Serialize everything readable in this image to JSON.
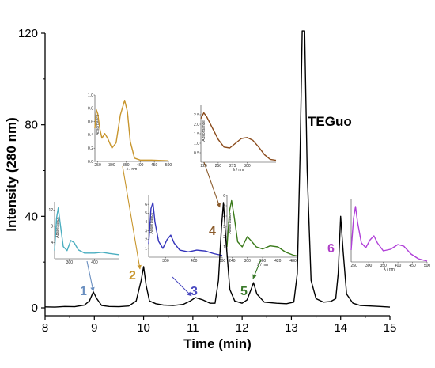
{
  "chart_data": {
    "type": "line",
    "title": "",
    "xlabel": "Time (min)",
    "ylabel": "Intensity (280 nm)",
    "xlim": [
      8,
      15
    ],
    "ylim": [
      -3,
      120
    ],
    "x_ticks": [
      8,
      9,
      10,
      11,
      12,
      13,
      14,
      15
    ],
    "y_ticks": [
      0,
      40,
      80,
      120
    ],
    "grid": false,
    "series_color": "#000000",
    "peak_label": "TEGuo",
    "series": [
      {
        "name": "",
        "points": [
          [
            8.0,
            0.4
          ],
          [
            8.2,
            0.3
          ],
          [
            8.4,
            0.6
          ],
          [
            8.6,
            0.5
          ],
          [
            8.8,
            1.2
          ],
          [
            8.9,
            3.0
          ],
          [
            8.98,
            7.0
          ],
          [
            9.05,
            4.0
          ],
          [
            9.15,
            1.0
          ],
          [
            9.3,
            0.6
          ],
          [
            9.5,
            0.5
          ],
          [
            9.7,
            0.8
          ],
          [
            9.85,
            3.0
          ],
          [
            9.95,
            12.0
          ],
          [
            10.0,
            18.0
          ],
          [
            10.05,
            10.0
          ],
          [
            10.12,
            3.0
          ],
          [
            10.25,
            1.8
          ],
          [
            10.4,
            1.2
          ],
          [
            10.6,
            1.0
          ],
          [
            10.8,
            1.5
          ],
          [
            10.95,
            3.0
          ],
          [
            11.05,
            4.5
          ],
          [
            11.2,
            3.5
          ],
          [
            11.35,
            2.0
          ],
          [
            11.45,
            2.0
          ],
          [
            11.52,
            12.0
          ],
          [
            11.58,
            35.0
          ],
          [
            11.62,
            46.0
          ],
          [
            11.67,
            30.0
          ],
          [
            11.75,
            8.0
          ],
          [
            11.85,
            3.0
          ],
          [
            12.0,
            2.0
          ],
          [
            12.1,
            3.5
          ],
          [
            12.18,
            8.0
          ],
          [
            12.23,
            11.0
          ],
          [
            12.3,
            6.0
          ],
          [
            12.45,
            2.5
          ],
          [
            12.7,
            2.0
          ],
          [
            12.9,
            1.8
          ],
          [
            13.05,
            2.5
          ],
          [
            13.12,
            15.0
          ],
          [
            13.18,
            70.0
          ],
          [
            13.22,
            121.0
          ],
          [
            13.27,
            121.0
          ],
          [
            13.32,
            60.0
          ],
          [
            13.4,
            12.0
          ],
          [
            13.5,
            4.0
          ],
          [
            13.65,
            2.5
          ],
          [
            13.8,
            2.8
          ],
          [
            13.9,
            4.0
          ],
          [
            13.95,
            15.0
          ],
          [
            14.0,
            40.0
          ],
          [
            14.05,
            25.0
          ],
          [
            14.12,
            6.0
          ],
          [
            14.25,
            2.0
          ],
          [
            14.4,
            1.0
          ],
          [
            14.6,
            0.8
          ],
          [
            14.8,
            0.6
          ],
          [
            15.0,
            0.3
          ]
        ]
      }
    ],
    "peaks": [
      {
        "label": "1",
        "color": "#6a8fc0",
        "x": 8.98,
        "y": 7.0
      },
      {
        "label": "2",
        "color": "#c8962e",
        "x": 10.0,
        "y": 18.0
      },
      {
        "label": "3",
        "color": "#4a4ac0",
        "x": 11.05,
        "y": 4.5
      },
      {
        "label": "4",
        "color": "#8a5a2a",
        "x": 11.62,
        "y": 46.0
      },
      {
        "label": "5",
        "color": "#3a7a2a",
        "x": 12.23,
        "y": 11.0
      },
      {
        "label": "6",
        "color": "#b040c8",
        "x": 14.0,
        "y": 40.0
      }
    ],
    "insets": [
      {
        "peak": "1",
        "color": "#4aaec0",
        "ylabel": "Absorbance",
        "xlabel": "",
        "xlim": [
          240,
          500
        ],
        "ylim": [
          0,
          14
        ],
        "x_ticks": [
          300,
          400
        ],
        "y_ticks": [
          4,
          8,
          12
        ],
        "points": [
          [
            240,
            2
          ],
          [
            248,
            10
          ],
          [
            255,
            12.5
          ],
          [
            262,
            9
          ],
          [
            275,
            3
          ],
          [
            290,
            2
          ],
          [
            305,
            4.5
          ],
          [
            318,
            4
          ],
          [
            335,
            2.2
          ],
          [
            360,
            1.4
          ],
          [
            400,
            1.4
          ],
          [
            430,
            1.6
          ],
          [
            460,
            1.3
          ],
          [
            500,
            1.0
          ]
        ]
      },
      {
        "peak": "2",
        "color": "#c8962e",
        "ylabel": "Absorbance",
        "xlabel": "λ / nm",
        "xlim": [
          240,
          500
        ],
        "ylim": [
          0,
          1.0
        ],
        "x_ticks": [
          250,
          300,
          350,
          400,
          450,
          500
        ],
        "y_ticks": [
          0.0,
          0.2,
          0.4,
          0.6,
          0.8,
          1.0
        ],
        "points": [
          [
            240,
            0.5
          ],
          [
            245,
            0.78
          ],
          [
            250,
            0.72
          ],
          [
            258,
            0.48
          ],
          [
            265,
            0.35
          ],
          [
            275,
            0.42
          ],
          [
            285,
            0.35
          ],
          [
            300,
            0.2
          ],
          [
            315,
            0.28
          ],
          [
            330,
            0.7
          ],
          [
            345,
            0.92
          ],
          [
            355,
            0.75
          ],
          [
            365,
            0.3
          ],
          [
            380,
            0.05
          ],
          [
            400,
            0.02
          ],
          [
            440,
            0.02
          ],
          [
            500,
            0.01
          ]
        ]
      },
      {
        "peak": "3",
        "color": "#3333bb",
        "ylabel": "Absorbance",
        "xlabel": "",
        "xlim": [
          240,
          500
        ],
        "ylim": [
          0,
          7
        ],
        "x_ticks": [
          300,
          400,
          500
        ],
        "y_ticks": [
          1,
          2,
          3,
          4,
          5,
          6
        ],
        "points": [
          [
            240,
            1.5
          ],
          [
            248,
            5.5
          ],
          [
            255,
            6.2
          ],
          [
            262,
            4.0
          ],
          [
            275,
            1.8
          ],
          [
            290,
            1.0
          ],
          [
            305,
            2.0
          ],
          [
            318,
            2.5
          ],
          [
            330,
            1.6
          ],
          [
            350,
            0.8
          ],
          [
            380,
            0.6
          ],
          [
            410,
            0.8
          ],
          [
            440,
            0.7
          ],
          [
            470,
            0.4
          ],
          [
            500,
            0.2
          ]
        ]
      },
      {
        "peak": "4",
        "color": "#8a4a1a",
        "ylabel": "Absorbance",
        "xlabel": "λ / nm",
        "xlim": [
          220,
          350
        ],
        "ylim": [
          0,
          3.0
        ],
        "x_ticks": [
          225,
          250,
          275,
          300
        ],
        "y_ticks": [
          0.5,
          1.0,
          1.5,
          2.0,
          2.5
        ],
        "points": [
          [
            220,
            2.3
          ],
          [
            225,
            2.6
          ],
          [
            230,
            2.4
          ],
          [
            240,
            1.8
          ],
          [
            250,
            1.2
          ],
          [
            260,
            0.8
          ],
          [
            270,
            0.75
          ],
          [
            280,
            1.0
          ],
          [
            290,
            1.25
          ],
          [
            300,
            1.3
          ],
          [
            310,
            1.15
          ],
          [
            320,
            0.8
          ],
          [
            330,
            0.4
          ],
          [
            340,
            0.15
          ],
          [
            350,
            0.1
          ]
        ]
      },
      {
        "peak": "5",
        "color": "#3a7a1a",
        "ylabel": "Absorbance",
        "xlabel": "λ / nm",
        "xlim": [
          220,
          500
        ],
        "ylim": [
          0,
          6
        ],
        "x_ticks": [
          240,
          300,
          360,
          420,
          480
        ],
        "y_ticks": [
          1,
          2,
          3,
          4,
          5,
          6
        ],
        "points": [
          [
            220,
            1.0
          ],
          [
            230,
            4.5
          ],
          [
            238,
            5.5
          ],
          [
            248,
            4.0
          ],
          [
            262,
            1.5
          ],
          [
            280,
            1.0
          ],
          [
            300,
            2.0
          ],
          [
            315,
            1.6
          ],
          [
            335,
            1.0
          ],
          [
            360,
            0.8
          ],
          [
            390,
            1.1
          ],
          [
            420,
            1.0
          ],
          [
            450,
            0.5
          ],
          [
            480,
            0.2
          ],
          [
            500,
            0.1
          ]
        ]
      },
      {
        "peak": "6",
        "color": "#b040d8",
        "ylabel": "",
        "xlabel": "λ / nm",
        "xlim": [
          240,
          500
        ],
        "ylim": [
          0,
          8
        ],
        "x_ticks": [
          250,
          300,
          350,
          400,
          450,
          500
        ],
        "y_ticks": [],
        "points": [
          [
            240,
            1.5
          ],
          [
            248,
            5.5
          ],
          [
            255,
            7.0
          ],
          [
            262,
            5.0
          ],
          [
            275,
            2.4
          ],
          [
            290,
            1.8
          ],
          [
            305,
            2.8
          ],
          [
            318,
            3.3
          ],
          [
            330,
            2.4
          ],
          [
            350,
            1.4
          ],
          [
            375,
            1.6
          ],
          [
            400,
            2.2
          ],
          [
            420,
            2.0
          ],
          [
            445,
            1.0
          ],
          [
            470,
            0.4
          ],
          [
            500,
            0.1
          ]
        ]
      }
    ]
  }
}
